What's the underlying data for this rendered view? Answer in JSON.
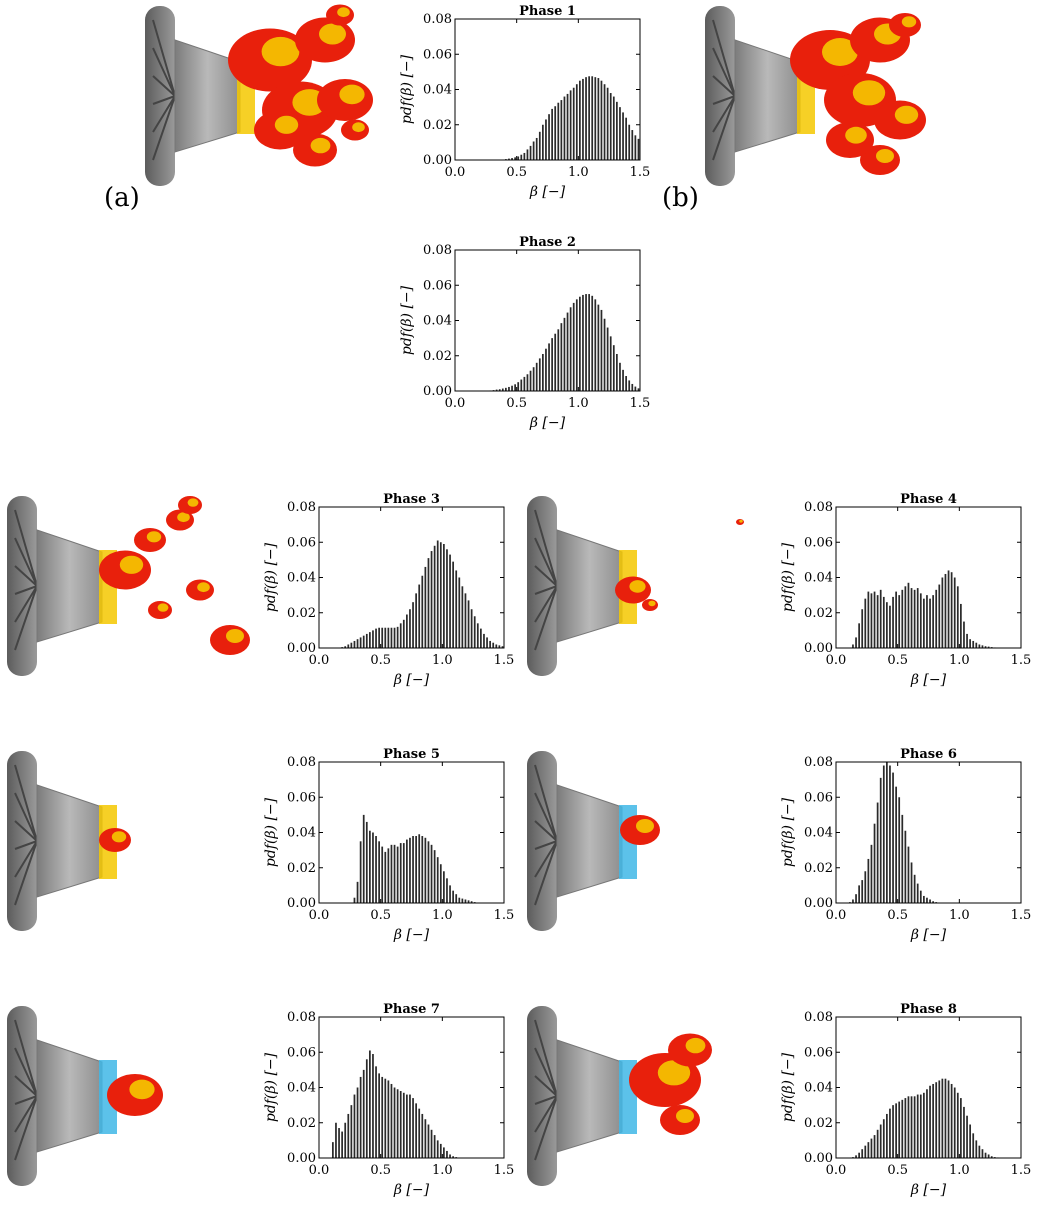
{
  "panel_labels": {
    "a": "(a)",
    "b": "(b)"
  },
  "axis_text": {
    "xlabel": "β [−]",
    "ylabel": "pdf(β) [−]"
  },
  "colors": {
    "bars": "#2a2a2a",
    "nozzle": "#9a9a9a",
    "flame_hot": "#e8200c",
    "flame_warm": "#f5c800",
    "flame_cool": "#3fb7e6"
  },
  "chart_data": [
    {
      "type": "bar",
      "title": "Phase 1",
      "xlabel": "β [−]",
      "ylabel": "pdf(β) [−]",
      "xlim": [
        0,
        1.5
      ],
      "ylim": [
        0,
        0.08
      ],
      "xticks": [
        "0.0",
        "0.5",
        "1.0",
        "1.5"
      ],
      "yticks": [
        "0.00",
        "0.02",
        "0.04",
        "0.06",
        "0.08"
      ],
      "x_start": 0.0,
      "bin_width": 0.025,
      "values": [
        0,
        0,
        0,
        0,
        0,
        0,
        0,
        0,
        0,
        0,
        0,
        0,
        0,
        0,
        0.0001,
        0.0002,
        0.0005,
        0.0008,
        0.0011,
        0.0015,
        0.002,
        0.003,
        0.004,
        0.006,
        0.008,
        0.0105,
        0.0125,
        0.016,
        0.02,
        0.023,
        0.026,
        0.029,
        0.0305,
        0.0325,
        0.034,
        0.036,
        0.0375,
        0.0395,
        0.041,
        0.043,
        0.045,
        0.046,
        0.047,
        0.0475,
        0.0475,
        0.047,
        0.0465,
        0.045,
        0.043,
        0.041,
        0.038,
        0.036,
        0.033,
        0.03,
        0.027,
        0.024,
        0.02,
        0.017,
        0.014,
        0.012
      ]
    },
    {
      "type": "bar",
      "title": "Phase 2",
      "xlabel": "β [−]",
      "ylabel": "pdf(β) [−]",
      "xlim": [
        0,
        1.5
      ],
      "ylim": [
        0,
        0.08
      ],
      "xticks": [
        "0.0",
        "0.5",
        "1.0",
        "1.5"
      ],
      "yticks": [
        "0.00",
        "0.02",
        "0.04",
        "0.06",
        "0.08"
      ],
      "x_start": 0.0,
      "bin_width": 0.025,
      "values": [
        0,
        0,
        0,
        0,
        0,
        0,
        0,
        0,
        0,
        0.0001,
        0.0002,
        0.0003,
        0.0005,
        0.0008,
        0.001,
        0.0014,
        0.0018,
        0.0023,
        0.003,
        0.0038,
        0.005,
        0.0065,
        0.008,
        0.0095,
        0.0115,
        0.0135,
        0.016,
        0.0185,
        0.021,
        0.024,
        0.027,
        0.03,
        0.0325,
        0.035,
        0.0385,
        0.0415,
        0.0445,
        0.0475,
        0.05,
        0.052,
        0.0535,
        0.0545,
        0.055,
        0.055,
        0.054,
        0.052,
        0.049,
        0.046,
        0.041,
        0.036,
        0.031,
        0.026,
        0.021,
        0.016,
        0.012,
        0.0085,
        0.006,
        0.004,
        0.0025,
        0.0015
      ]
    },
    {
      "type": "bar",
      "title": "Phase 3",
      "xlabel": "β [−]",
      "ylabel": "pdf(β) [−]",
      "xlim": [
        0,
        1.5
      ],
      "ylim": [
        0,
        0.08
      ],
      "xticks": [
        "0.0",
        "0.5",
        "1.0",
        "1.5"
      ],
      "yticks": [
        "0.00",
        "0.02",
        "0.04",
        "0.06",
        "0.08"
      ],
      "x_start": 0.0,
      "bin_width": 0.025,
      "values": [
        0,
        0,
        0,
        0,
        0,
        0,
        0,
        0.0005,
        0.001,
        0.002,
        0.003,
        0.004,
        0.005,
        0.006,
        0.007,
        0.008,
        0.009,
        0.01,
        0.011,
        0.0115,
        0.0115,
        0.0115,
        0.0115,
        0.0115,
        0.0115,
        0.012,
        0.014,
        0.016,
        0.019,
        0.022,
        0.026,
        0.031,
        0.036,
        0.041,
        0.046,
        0.051,
        0.055,
        0.058,
        0.061,
        0.06,
        0.059,
        0.056,
        0.053,
        0.049,
        0.044,
        0.04,
        0.035,
        0.031,
        0.027,
        0.022,
        0.018,
        0.014,
        0.011,
        0.008,
        0.006,
        0.004,
        0.003,
        0.002,
        0.0015,
        0.001
      ]
    },
    {
      "type": "bar",
      "title": "Phase 4",
      "xlabel": "β [−]",
      "ylabel": "pdf(β) [−]",
      "xlim": [
        0,
        1.5
      ],
      "ylim": [
        0,
        0.08
      ],
      "xticks": [
        "0.0",
        "0.5",
        "1.0",
        "1.5"
      ],
      "yticks": [
        "0.00",
        "0.02",
        "0.04",
        "0.06",
        "0.08"
      ],
      "x_start": 0.0,
      "bin_width": 0.025,
      "values": [
        0,
        0,
        0,
        0,
        0,
        0.002,
        0.006,
        0.014,
        0.022,
        0.028,
        0.032,
        0.031,
        0.032,
        0.03,
        0.033,
        0.029,
        0.026,
        0.024,
        0.029,
        0.032,
        0.03,
        0.033,
        0.035,
        0.037,
        0.034,
        0.033,
        0.034,
        0.031,
        0.028,
        0.03,
        0.028,
        0.03,
        0.033,
        0.036,
        0.04,
        0.042,
        0.044,
        0.043,
        0.04,
        0.035,
        0.025,
        0.015,
        0.008,
        0.005,
        0.004,
        0.003,
        0.002,
        0.0015,
        0.001,
        0.0008,
        0.0005,
        0.0003,
        0.0002,
        0.0001,
        0,
        0,
        0,
        0,
        0,
        0
      ]
    },
    {
      "type": "bar",
      "title": "Phase 5",
      "xlabel": "β [−]",
      "ylabel": "pdf(β) [−]",
      "xlim": [
        0,
        1.5
      ],
      "ylim": [
        0,
        0.08
      ],
      "xticks": [
        "0.0",
        "0.5",
        "1.0",
        "1.5"
      ],
      "yticks": [
        "0.00",
        "0.02",
        "0.04",
        "0.06",
        "0.08"
      ],
      "x_start": 0.0,
      "bin_width": 0.025,
      "values": [
        0,
        0,
        0,
        0,
        0,
        0,
        0,
        0,
        0,
        0,
        0,
        0.003,
        0.012,
        0.035,
        0.05,
        0.046,
        0.041,
        0.04,
        0.038,
        0.035,
        0.032,
        0.029,
        0.031,
        0.033,
        0.033,
        0.032,
        0.034,
        0.034,
        0.036,
        0.037,
        0.038,
        0.038,
        0.039,
        0.038,
        0.037,
        0.035,
        0.033,
        0.03,
        0.026,
        0.022,
        0.018,
        0.014,
        0.01,
        0.007,
        0.005,
        0.003,
        0.0025,
        0.002,
        0.0015,
        0.001,
        0.0005,
        0,
        0,
        0,
        0,
        0,
        0,
        0,
        0,
        0
      ]
    },
    {
      "type": "bar",
      "title": "Phase 6",
      "xlabel": "β [−]",
      "ylabel": "pdf(β) [−]",
      "xlim": [
        0,
        1.5
      ],
      "ylim": [
        0,
        0.08
      ],
      "xticks": [
        "0.0",
        "0.5",
        "1.0",
        "1.5"
      ],
      "yticks": [
        "0.00",
        "0.02",
        "0.04",
        "0.06",
        "0.08"
      ],
      "x_start": 0.0,
      "bin_width": 0.025,
      "values": [
        0,
        0,
        0,
        0,
        0.0005,
        0.002,
        0.005,
        0.01,
        0.013,
        0.018,
        0.025,
        0.033,
        0.045,
        0.057,
        0.071,
        0.078,
        0.08,
        0.078,
        0.074,
        0.066,
        0.06,
        0.05,
        0.041,
        0.032,
        0.023,
        0.016,
        0.011,
        0.007,
        0.004,
        0.003,
        0.002,
        0.001,
        0.0005,
        0.0002,
        0,
        0,
        0,
        0,
        0,
        0,
        0,
        0,
        0,
        0,
        0,
        0,
        0,
        0,
        0,
        0,
        0,
        0,
        0,
        0,
        0,
        0,
        0,
        0,
        0,
        0
      ]
    },
    {
      "type": "bar",
      "title": "Phase 7",
      "xlabel": "β [−]",
      "ylabel": "pdf(β) [−]",
      "xlim": [
        0,
        1.5
      ],
      "ylim": [
        0,
        0.08
      ],
      "xticks": [
        "0.0",
        "0.5",
        "1.0",
        "1.5"
      ],
      "yticks": [
        "0.00",
        "0.02",
        "0.04",
        "0.06",
        "0.08"
      ],
      "x_start": 0.0,
      "bin_width": 0.025,
      "values": [
        0,
        0,
        0,
        0,
        0.009,
        0.02,
        0.017,
        0.015,
        0.02,
        0.025,
        0.03,
        0.036,
        0.04,
        0.046,
        0.05,
        0.056,
        0.061,
        0.059,
        0.052,
        0.048,
        0.046,
        0.045,
        0.044,
        0.042,
        0.04,
        0.039,
        0.038,
        0.037,
        0.036,
        0.036,
        0.034,
        0.031,
        0.028,
        0.025,
        0.022,
        0.019,
        0.016,
        0.013,
        0.01,
        0.008,
        0.006,
        0.004,
        0.002,
        0.001,
        0.0005,
        0.0002,
        0,
        0,
        0,
        0,
        0,
        0,
        0,
        0,
        0,
        0,
        0,
        0,
        0,
        0
      ]
    },
    {
      "type": "bar",
      "title": "Phase 8",
      "xlabel": "β [−]",
      "ylabel": "pdf(β) [−]",
      "xlim": [
        0,
        1.5
      ],
      "ylim": [
        0,
        0.08
      ],
      "xticks": [
        "0.0",
        "0.5",
        "1.0",
        "1.5"
      ],
      "yticks": [
        "0.00",
        "0.02",
        "0.04",
        "0.06",
        "0.08"
      ],
      "x_start": 0.0,
      "bin_width": 0.025,
      "values": [
        0,
        0,
        0,
        0,
        0,
        0.0005,
        0.0015,
        0.003,
        0.005,
        0.007,
        0.009,
        0.011,
        0.013,
        0.016,
        0.019,
        0.022,
        0.025,
        0.028,
        0.03,
        0.031,
        0.032,
        0.033,
        0.034,
        0.035,
        0.035,
        0.035,
        0.036,
        0.036,
        0.037,
        0.039,
        0.041,
        0.042,
        0.043,
        0.044,
        0.045,
        0.045,
        0.044,
        0.042,
        0.04,
        0.037,
        0.034,
        0.029,
        0.024,
        0.019,
        0.014,
        0.01,
        0.007,
        0.005,
        0.003,
        0.002,
        0.001,
        0.0005,
        0.0003,
        0.0002,
        0.0001,
        0,
        0,
        0,
        0,
        0
      ]
    }
  ]
}
